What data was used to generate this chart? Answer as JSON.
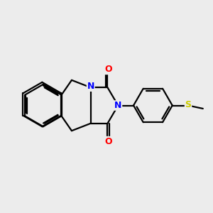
{
  "background_color": "#ececec",
  "bond_color": "#000000",
  "atom_colors": {
    "N": "#0000ff",
    "O": "#ff0000",
    "S": "#cccc00",
    "C": "#000000"
  },
  "lw": 1.6,
  "figsize": [
    3.0,
    3.0
  ],
  "dpi": 100
}
